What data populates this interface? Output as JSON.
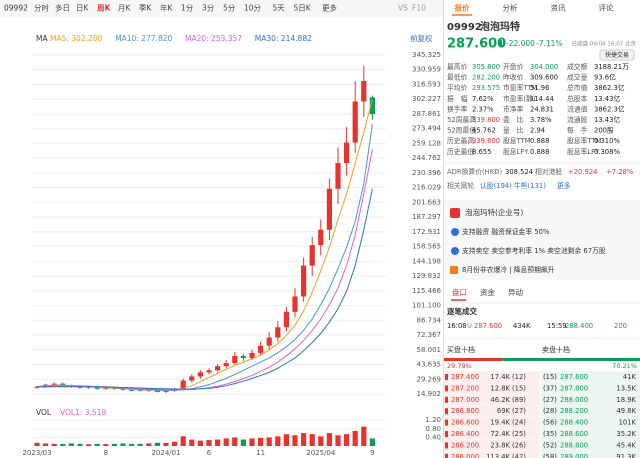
{
  "toolbar": {
    "code": "09992",
    "tabs": [
      "分时",
      "多日",
      "日K",
      "周K",
      "月K",
      "季K",
      "年K",
      "1分",
      "3分",
      "5分",
      "10分",
      "5天",
      "5日K",
      "更多"
    ],
    "selected": 3,
    "icons": [
      "VS",
      "F10"
    ]
  },
  "chart_data": [
    {
      "type": "candlestick",
      "label": "MA",
      "adjust": "前复权",
      "categories": [
        "2023/03",
        null,
        null,
        null,
        null,
        null,
        null,
        null,
        "8",
        null,
        null,
        null,
        null,
        null,
        null,
        "2024/01",
        null,
        null,
        null,
        null,
        "6",
        null,
        null,
        null,
        null,
        null,
        "11",
        null,
        null,
        null,
        null,
        null,
        null,
        "2025/04",
        null,
        null,
        null,
        null,
        null,
        "9"
      ],
      "open": [
        21,
        22,
        24,
        25,
        23,
        22,
        21,
        22,
        20,
        21,
        20,
        19,
        18.5,
        18,
        19,
        17,
        18,
        20,
        28,
        32,
        36,
        38,
        42,
        45,
        52,
        50,
        55,
        62,
        70,
        80,
        95,
        110,
        140,
        160,
        175,
        215,
        240,
        260,
        300,
        304
      ],
      "high": [
        23,
        25,
        26,
        26,
        24,
        23,
        23,
        23,
        22,
        22,
        21,
        20,
        19.5,
        20,
        20,
        19,
        21,
        30,
        34,
        38,
        40,
        44,
        48,
        56,
        54,
        58,
        66,
        75,
        86,
        100,
        118,
        148,
        168,
        185,
        225,
        255,
        275,
        320,
        335,
        305.8
      ],
      "low": [
        20,
        21,
        23,
        22,
        21,
        20,
        20,
        19,
        19,
        19,
        18,
        17.5,
        17.5,
        17,
        16.5,
        16,
        17,
        19,
        26,
        30,
        34,
        36,
        40,
        43,
        47,
        48,
        52,
        58,
        66,
        76,
        90,
        105,
        130,
        150,
        165,
        200,
        228,
        250,
        285,
        282.2
      ],
      "close": [
        22,
        24,
        25,
        23,
        22,
        21,
        22,
        20,
        21,
        20,
        19,
        18,
        18,
        19,
        17,
        18,
        20,
        28,
        32,
        36,
        38,
        42,
        45,
        52,
        50,
        55,
        62,
        70,
        80,
        95,
        110,
        140,
        160,
        175,
        215,
        240,
        260,
        300,
        320,
        287.6
      ],
      "up_color": "#e8322e",
      "down_color": "#0a9e5a",
      "series": [
        {
          "name": "MA5: 302.280",
          "color": "#f0a020",
          "values": [
            22,
            23,
            23.5,
            23.5,
            23,
            22.5,
            22,
            21.5,
            21,
            20.5,
            20,
            19.5,
            19,
            18.8,
            18.5,
            18.3,
            18.7,
            20.5,
            23,
            27,
            31,
            35,
            39,
            43,
            46,
            49,
            53,
            58,
            64,
            72,
            82,
            96,
            114,
            135,
            158,
            185,
            210,
            240,
            270,
            302.28
          ]
        },
        {
          "name": "MA10: 277.820",
          "color": "#4a90e2",
          "values": [
            22,
            22.5,
            23,
            23,
            23,
            23,
            22.5,
            22,
            21.5,
            21,
            20.5,
            20,
            19.5,
            19,
            18.8,
            18.5,
            18.5,
            19,
            20,
            22,
            24,
            27,
            30,
            34,
            38,
            42,
            46,
            50,
            55,
            61,
            68,
            77,
            88,
            102,
            118,
            137,
            158,
            183,
            220,
            277.82
          ]
        },
        {
          "name": "MA20: 253.357",
          "color": "#e05fc8",
          "values": [
            22,
            22,
            22.5,
            22.5,
            22.5,
            22.5,
            22.5,
            22,
            22,
            21.5,
            21,
            20.5,
            20,
            19.8,
            19.5,
            19.2,
            19,
            19,
            19.3,
            20,
            21,
            22.5,
            24.5,
            27,
            30,
            33,
            37,
            41,
            46,
            52,
            59,
            67,
            77,
            88,
            102,
            118,
            140,
            170,
            210,
            253.357
          ]
        },
        {
          "name": "MA30: 214.882",
          "color": "#2f6fd6",
          "values": [
            22,
            22,
            22,
            22,
            22,
            22,
            22,
            22,
            21.8,
            21.5,
            21.2,
            21,
            20.7,
            20.4,
            20.2,
            20,
            19.8,
            19.7,
            19.7,
            20,
            20.5,
            21.5,
            23,
            25,
            27.5,
            30,
            33,
            36,
            40,
            45,
            50,
            57,
            65,
            74,
            85,
            98,
            115,
            140,
            175,
            214.882
          ]
        }
      ],
      "ylim": [
        14.902,
        345.325
      ],
      "yticks": [
        {
          "value": 345.325,
          "label": "345.325"
        },
        330.959,
        316.593,
        302.227,
        287.861,
        273.494,
        259.128,
        244.762,
        230.396,
        216.029,
        201.663,
        187.297,
        172.931,
        158.565,
        144.198,
        129.832,
        115.466,
        {
          "value": 101.1,
          "label": "101.100"
        },
        86.734,
        72.367,
        58.001,
        43.635,
        29.269,
        14.902
      ],
      "grid": true
    },
    {
      "type": "bar",
      "title": "VOL",
      "legend": "VOL1: 3.519",
      "values": [
        0.15,
        0.12,
        0.1,
        0.1,
        0.12,
        0.1,
        0.08,
        0.1,
        0.09,
        0.1,
        0.12,
        0.1,
        0.1,
        0.12,
        0.15,
        0.14,
        0.2,
        0.45,
        0.3,
        0.25,
        0.28,
        0.3,
        0.35,
        0.4,
        0.3,
        0.35,
        0.38,
        0.4,
        0.45,
        0.55,
        0.5,
        0.6,
        0.55,
        0.45,
        0.6,
        0.5,
        0.55,
        0.7,
        0.9,
        0.35
      ],
      "ylim": [
        0,
        1.3
      ],
      "yticks": [
        {
          "value": 1.2,
          "label": "1.20"
        },
        {
          "value": 0.8,
          "label": "0.80"
        },
        {
          "value": 0.4,
          "label": "0.40"
        }
      ]
    }
  ],
  "quote": {
    "tabs": [
      "报价",
      "分析",
      "资讯",
      "评论"
    ],
    "code": "09992",
    "name": "泡泡玛特",
    "price": "287.600",
    "arrow": "⬇",
    "change": "-22.000",
    "change_pct": "-7.11%",
    "status": "已收盘 09/08 16:07 北京",
    "button": "快捷交易",
    "stats": [
      [
        "最高价",
        "305.800",
        "开盘价",
        "304.000",
        "成交额",
        "3188.21万"
      ],
      [
        "最低价",
        "282.200",
        "昨收价",
        "309.600",
        "成交量",
        "93.6亿"
      ],
      [
        "平均价",
        "293.575",
        "市盈率TTM",
        "51.96",
        "总市值",
        "3862.3亿"
      ],
      [
        "振　幅",
        "7.62%",
        "市盈率(静)",
        "114.44",
        "总股本",
        "13.43亿"
      ],
      [
        "换手率",
        "2.37%",
        "市净率",
        "24.831",
        "流通值",
        "3862.3亿"
      ],
      [
        "52周最高",
        "339.800",
        "委　比",
        "3.78%",
        "流通股",
        "13.43亿"
      ],
      [
        "52周最低",
        "45.762",
        "量　比",
        "2.94",
        "每　手",
        "200股"
      ],
      [
        "历史最高",
        "339.800",
        "股息TTM",
        "0.888",
        "股息率TTM",
        "0.310%"
      ],
      [
        "历史最低",
        "8.655",
        "股息LFY",
        "0.888",
        "股息率LFY",
        "0.308%"
      ]
    ],
    "adr": [
      "ADR换算价(HKD)",
      "308.524",
      "相对港股",
      "+20.924",
      "+7.28%"
    ],
    "warrants": [
      "相关窝轮",
      "认股(194)",
      "牛熊(131)",
      "更多"
    ],
    "company": "泡泡玛特(企业号)",
    "margin": "支持融资  融资保证金率 50%",
    "short": "支持卖空  卖空参考利率 1%  卖空池剩余 67万股",
    "news": "8月份非农爆冷 | 降息预期飙升",
    "subtabs": [
      "盘口",
      "资金",
      "异动"
    ],
    "ticks_title": "逐笔成交",
    "tick_row": [
      "16:08",
      "U",
      "287.600",
      "434K",
      "15:59",
      "288.400",
      "200"
    ],
    "book_titles": [
      "买盘十档",
      "卖盘十档"
    ],
    "book_pct": [
      "29.79%",
      "70.21%"
    ],
    "bids": [
      [
        "287.400",
        "17.4K",
        "(12)"
      ],
      [
        "287.200",
        "12.8K",
        "(15)"
      ],
      [
        "287.000",
        "46.2K",
        "(89)"
      ],
      [
        "286.800",
        "69K",
        "(27)"
      ],
      [
        "286.600",
        "19.4K",
        "(24)"
      ],
      [
        "286.400",
        "72.4K",
        "(25)"
      ],
      [
        "286.200",
        "23.8K",
        "(26)"
      ],
      [
        "286.000",
        "113.4K",
        "(42)"
      ]
    ],
    "asks": [
      [
        "(15)",
        "287.600",
        "41K"
      ],
      [
        "(37)",
        "287.800",
        "13.5K"
      ],
      [
        "(27)",
        "288.000",
        "18.9K"
      ],
      [
        "(28)",
        "288.200",
        "49.8K"
      ],
      [
        "(56)",
        "288.400",
        "101K"
      ],
      [
        "(35)",
        "288.600",
        "35.2K"
      ],
      [
        "(52)",
        "288.800",
        "45.4K"
      ],
      [
        "(58)",
        "289.000",
        "91.3K"
      ]
    ]
  }
}
